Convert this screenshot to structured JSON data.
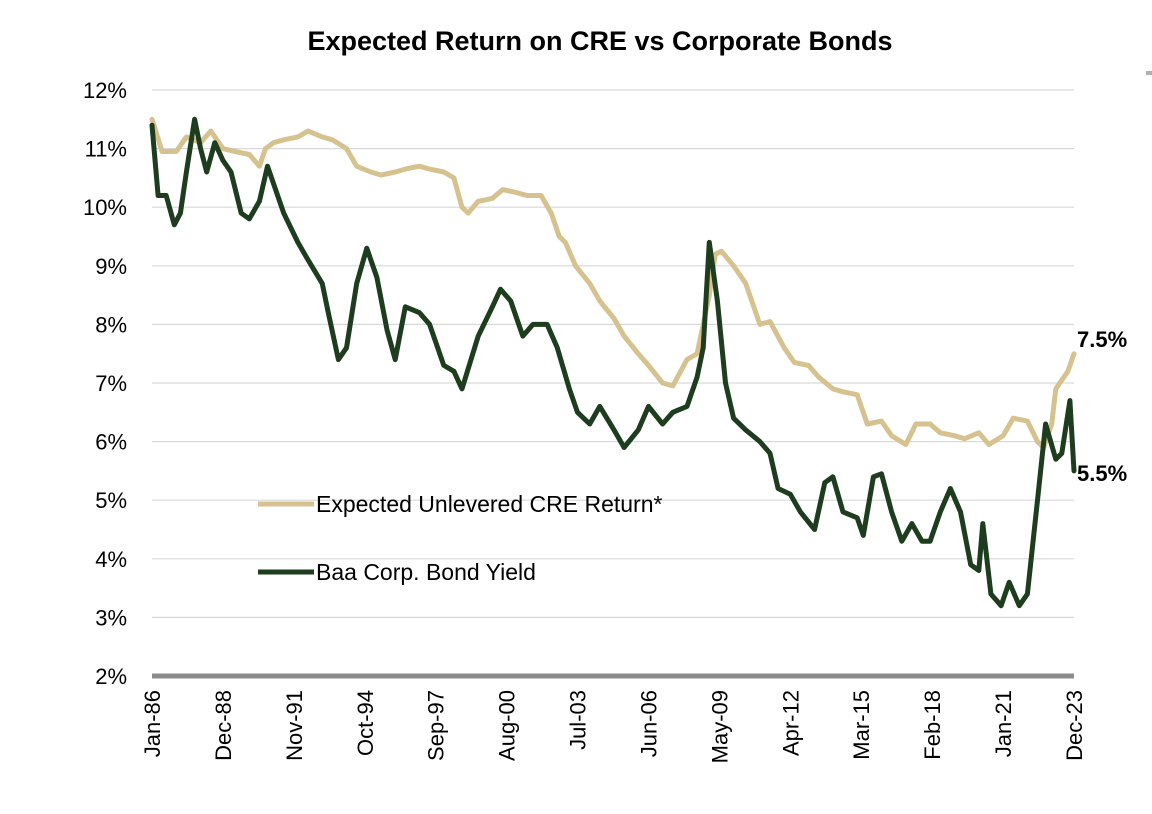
{
  "chart_data": {
    "type": "line",
    "title": "Expected Return on CRE vs Corporate Bonds",
    "xlabel": "",
    "ylabel": "",
    "ylim": [
      2,
      12
    ],
    "y_ticks": [
      "2%",
      "3%",
      "4%",
      "5%",
      "6%",
      "7%",
      "8%",
      "9%",
      "10%",
      "11%",
      "12%"
    ],
    "x_range": [
      "1986-01",
      "2023-12"
    ],
    "x_ticks": [
      "Jan-86",
      "Dec-88",
      "Nov-91",
      "Oct-94",
      "Sep-97",
      "Aug-00",
      "Jul-03",
      "Jun-06",
      "May-09",
      "Apr-12",
      "Mar-15",
      "Feb-18",
      "Jan-21",
      "Dec-23"
    ],
    "grid": "horizontal",
    "legend_position": "center-left",
    "series": [
      {
        "name": "Expected Unlevered CRE Return*",
        "color": "#d6c28f",
        "end_label": "7.5%",
        "points": [
          [
            "1986-01",
            11.5
          ],
          [
            "1986-06",
            10.95
          ],
          [
            "1987-01",
            10.95
          ],
          [
            "1987-06",
            11.2
          ],
          [
            "1988-01",
            11.1
          ],
          [
            "1988-06",
            11.3
          ],
          [
            "1988-12",
            11.0
          ],
          [
            "1989-06",
            10.95
          ],
          [
            "1990-01",
            10.9
          ],
          [
            "1990-06",
            10.7
          ],
          [
            "1990-09",
            11.0
          ],
          [
            "1991-01",
            11.1
          ],
          [
            "1991-06",
            11.15
          ],
          [
            "1992-01",
            11.2
          ],
          [
            "1992-06",
            11.3
          ],
          [
            "1993-01",
            11.2
          ],
          [
            "1993-06",
            11.15
          ],
          [
            "1994-01",
            11.0
          ],
          [
            "1994-06",
            10.7
          ],
          [
            "1995-01",
            10.6
          ],
          [
            "1995-06",
            10.55
          ],
          [
            "1996-01",
            10.6
          ],
          [
            "1996-06",
            10.65
          ],
          [
            "1997-01",
            10.7
          ],
          [
            "1997-06",
            10.65
          ],
          [
            "1998-01",
            10.6
          ],
          [
            "1998-06",
            10.5
          ],
          [
            "1998-10",
            10.0
          ],
          [
            "1999-01",
            9.9
          ],
          [
            "1999-06",
            10.1
          ],
          [
            "2000-01",
            10.15
          ],
          [
            "2000-06",
            10.3
          ],
          [
            "2001-01",
            10.25
          ],
          [
            "2001-06",
            10.2
          ],
          [
            "2002-01",
            10.2
          ],
          [
            "2002-06",
            9.9
          ],
          [
            "2002-10",
            9.5
          ],
          [
            "2003-01",
            9.4
          ],
          [
            "2003-06",
            9.0
          ],
          [
            "2004-01",
            8.7
          ],
          [
            "2004-06",
            8.4
          ],
          [
            "2005-01",
            8.1
          ],
          [
            "2005-06",
            7.8
          ],
          [
            "2006-01",
            7.5
          ],
          [
            "2006-06",
            7.3
          ],
          [
            "2007-01",
            7.0
          ],
          [
            "2007-06",
            6.95
          ],
          [
            "2008-01",
            7.4
          ],
          [
            "2008-06",
            7.5
          ],
          [
            "2008-12",
            8.5
          ],
          [
            "2009-03",
            9.2
          ],
          [
            "2009-06",
            9.25
          ],
          [
            "2009-12",
            9.0
          ],
          [
            "2010-06",
            8.7
          ],
          [
            "2011-01",
            8.0
          ],
          [
            "2011-06",
            8.05
          ],
          [
            "2012-01",
            7.6
          ],
          [
            "2012-06",
            7.35
          ],
          [
            "2013-01",
            7.3
          ],
          [
            "2013-06",
            7.1
          ],
          [
            "2014-01",
            6.9
          ],
          [
            "2014-06",
            6.85
          ],
          [
            "2015-01",
            6.8
          ],
          [
            "2015-03",
            6.6
          ],
          [
            "2015-06",
            6.3
          ],
          [
            "2016-01",
            6.35
          ],
          [
            "2016-06",
            6.1
          ],
          [
            "2017-01",
            5.95
          ],
          [
            "2017-06",
            6.3
          ],
          [
            "2018-01",
            6.3
          ],
          [
            "2018-06",
            6.15
          ],
          [
            "2019-01",
            6.1
          ],
          [
            "2019-06",
            6.05
          ],
          [
            "2020-01",
            6.15
          ],
          [
            "2020-06",
            5.95
          ],
          [
            "2021-01",
            6.1
          ],
          [
            "2021-06",
            6.4
          ],
          [
            "2022-01",
            6.35
          ],
          [
            "2022-06",
            6.0
          ],
          [
            "2022-09",
            5.9
          ],
          [
            "2023-01",
            6.3
          ],
          [
            "2023-03",
            6.9
          ],
          [
            "2023-06",
            7.05
          ],
          [
            "2023-09",
            7.2
          ],
          [
            "2023-12",
            7.5
          ]
        ]
      },
      {
        "name": "Baa Corp. Bond Yield",
        "color": "#1e3d1e",
        "end_label": "5.5%",
        "points": [
          [
            "1986-01",
            11.4
          ],
          [
            "1986-04",
            10.2
          ],
          [
            "1986-08",
            10.2
          ],
          [
            "1986-12",
            9.7
          ],
          [
            "1987-03",
            9.9
          ],
          [
            "1987-06",
            10.6
          ],
          [
            "1987-10",
            11.5
          ],
          [
            "1988-01",
            11.0
          ],
          [
            "1988-04",
            10.6
          ],
          [
            "1988-08",
            11.1
          ],
          [
            "1988-12",
            10.8
          ],
          [
            "1989-04",
            10.6
          ],
          [
            "1989-09",
            9.9
          ],
          [
            "1990-01",
            9.8
          ],
          [
            "1990-06",
            10.1
          ],
          [
            "1990-10",
            10.7
          ],
          [
            "1991-01",
            10.4
          ],
          [
            "1991-06",
            9.9
          ],
          [
            "1992-01",
            9.4
          ],
          [
            "1992-06",
            9.1
          ],
          [
            "1993-01",
            8.7
          ],
          [
            "1993-04",
            8.2
          ],
          [
            "1993-09",
            7.4
          ],
          [
            "1994-01",
            7.6
          ],
          [
            "1994-06",
            8.7
          ],
          [
            "1994-11",
            9.3
          ],
          [
            "1995-04",
            8.8
          ],
          [
            "1995-09",
            7.9
          ],
          [
            "1996-01",
            7.4
          ],
          [
            "1996-06",
            8.3
          ],
          [
            "1997-01",
            8.2
          ],
          [
            "1997-06",
            8.0
          ],
          [
            "1998-01",
            7.3
          ],
          [
            "1998-06",
            7.2
          ],
          [
            "1998-10",
            6.9
          ],
          [
            "1999-06",
            7.8
          ],
          [
            "2000-01",
            8.3
          ],
          [
            "2000-05",
            8.6
          ],
          [
            "2000-10",
            8.4
          ],
          [
            "2001-04",
            7.8
          ],
          [
            "2001-09",
            8.0
          ],
          [
            "2002-04",
            8.0
          ],
          [
            "2002-09",
            7.6
          ],
          [
            "2003-03",
            6.9
          ],
          [
            "2003-07",
            6.5
          ],
          [
            "2004-01",
            6.3
          ],
          [
            "2004-06",
            6.6
          ],
          [
            "2005-01",
            6.2
          ],
          [
            "2005-06",
            5.9
          ],
          [
            "2006-01",
            6.2
          ],
          [
            "2006-06",
            6.6
          ],
          [
            "2007-01",
            6.3
          ],
          [
            "2007-06",
            6.5
          ],
          [
            "2008-01",
            6.6
          ],
          [
            "2008-06",
            7.1
          ],
          [
            "2008-09",
            7.6
          ],
          [
            "2008-12",
            9.4
          ],
          [
            "2009-04",
            8.4
          ],
          [
            "2009-08",
            7.0
          ],
          [
            "2009-12",
            6.4
          ],
          [
            "2010-06",
            6.2
          ],
          [
            "2011-01",
            6.0
          ],
          [
            "2011-06",
            5.8
          ],
          [
            "2011-10",
            5.2
          ],
          [
            "2012-04",
            5.1
          ],
          [
            "2012-09",
            4.8
          ],
          [
            "2013-04",
            4.5
          ],
          [
            "2013-09",
            5.3
          ],
          [
            "2014-01",
            5.4
          ],
          [
            "2014-06",
            4.8
          ],
          [
            "2015-01",
            4.7
          ],
          [
            "2015-04",
            4.4
          ],
          [
            "2015-09",
            5.4
          ],
          [
            "2016-01",
            5.45
          ],
          [
            "2016-06",
            4.8
          ],
          [
            "2016-11",
            4.3
          ],
          [
            "2017-04",
            4.6
          ],
          [
            "2017-09",
            4.3
          ],
          [
            "2018-01",
            4.3
          ],
          [
            "2018-06",
            4.8
          ],
          [
            "2018-11",
            5.2
          ],
          [
            "2019-04",
            4.8
          ],
          [
            "2019-09",
            3.9
          ],
          [
            "2020-01",
            3.8
          ],
          [
            "2020-03",
            4.6
          ],
          [
            "2020-07",
            3.4
          ],
          [
            "2020-12",
            3.2
          ],
          [
            "2021-04",
            3.6
          ],
          [
            "2021-09",
            3.2
          ],
          [
            "2022-01",
            3.4
          ],
          [
            "2022-06",
            5.0
          ],
          [
            "2022-10",
            6.3
          ],
          [
            "2023-03",
            5.7
          ],
          [
            "2023-06",
            5.8
          ],
          [
            "2023-10",
            6.7
          ],
          [
            "2023-12",
            5.5
          ]
        ]
      }
    ]
  }
}
